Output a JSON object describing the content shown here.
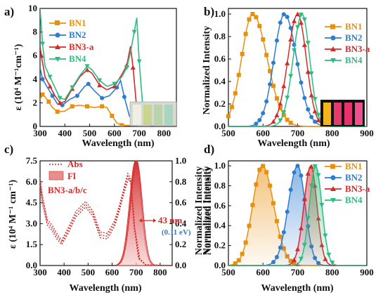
{
  "colors": {
    "BN1": "#e8900e",
    "BN2": "#2c7cd0",
    "BN3": "#d42a2a",
    "BN4": "#2bbd7e",
    "note_blue": "#2c7cd0"
  },
  "chart_data": [
    {
      "panel": "a)",
      "type": "line",
      "xlabel": "Wavelength (nm)",
      "ylabel": "ε (10⁴ M⁻¹cm⁻¹)",
      "xlim": [
        300,
        850
      ],
      "ylim": [
        0,
        10
      ],
      "xticks": [
        "300",
        "400",
        "500",
        "600",
        "700",
        "800"
      ],
      "yticks": [
        "0",
        "2",
        "4",
        "6",
        "8",
        "10"
      ],
      "legend": [
        "BN1",
        "BN2",
        "BN3-a",
        "BN4"
      ],
      "legend_position": "top-center",
      "series": [
        {
          "name": "BN1",
          "color": "#e8900e",
          "points": [
            [
              300,
              2.3
            ],
            [
              310,
              2.7
            ],
            [
              320,
              2.5
            ],
            [
              335,
              2.1
            ],
            [
              350,
              1.6
            ],
            [
              370,
              1.25
            ],
            [
              400,
              1.3
            ],
            [
              430,
              1.7
            ],
            [
              460,
              1.8
            ],
            [
              490,
              1.7
            ],
            [
              520,
              1.6
            ],
            [
              550,
              1.7
            ],
            [
              570,
              1.6
            ],
            [
              590,
              0.9
            ],
            [
              610,
              0.3
            ],
            [
              630,
              0.1
            ],
            [
              700,
              0.05
            ],
            [
              850,
              0.0
            ]
          ]
        },
        {
          "name": "BN2",
          "color": "#2c7cd0",
          "points": [
            [
              300,
              5.0
            ],
            [
              310,
              4.0
            ],
            [
              330,
              3.3
            ],
            [
              350,
              2.6
            ],
            [
              370,
              1.9
            ],
            [
              390,
              1.8
            ],
            [
              420,
              2.3
            ],
            [
              450,
              2.6
            ],
            [
              480,
              3.4
            ],
            [
              495,
              3.6
            ],
            [
              520,
              3.0
            ],
            [
              550,
              2.4
            ],
            [
              580,
              2.6
            ],
            [
              610,
              3.3
            ],
            [
              625,
              3.9
            ],
            [
              640,
              2.5
            ],
            [
              660,
              0.9
            ],
            [
              690,
              0.2
            ],
            [
              850,
              0.0
            ]
          ]
        },
        {
          "name": "BN3-a",
          "color": "#d42a2a",
          "points": [
            [
              300,
              6.8
            ],
            [
              305,
              6.0
            ],
            [
              320,
              4.2
            ],
            [
              340,
              3.4
            ],
            [
              360,
              2.6
            ],
            [
              380,
              2.0
            ],
            [
              400,
              2.1
            ],
            [
              430,
              3.2
            ],
            [
              460,
              4.2
            ],
            [
              490,
              4.8
            ],
            [
              510,
              4.5
            ],
            [
              540,
              3.5
            ],
            [
              570,
              3.1
            ],
            [
              600,
              3.4
            ],
            [
              630,
              4.4
            ],
            [
              650,
              5.2
            ],
            [
              665,
              6.8
            ],
            [
              675,
              5.0
            ],
            [
              690,
              1.5
            ],
            [
              710,
              0.3
            ],
            [
              750,
              0.05
            ],
            [
              850,
              0.0
            ]
          ]
        },
        {
          "name": "BN4",
          "color": "#2bbd7e",
          "points": [
            [
              300,
              10.0
            ],
            [
              310,
              7.0
            ],
            [
              320,
              5.1
            ],
            [
              340,
              4.2
            ],
            [
              360,
              3.3
            ],
            [
              380,
              2.4
            ],
            [
              400,
              2.3
            ],
            [
              430,
              3.3
            ],
            [
              460,
              4.3
            ],
            [
              490,
              5.1
            ],
            [
              510,
              4.8
            ],
            [
              540,
              3.9
            ],
            [
              570,
              3.4
            ],
            [
              600,
              3.6
            ],
            [
              630,
              4.2
            ],
            [
              650,
              5.0
            ],
            [
              665,
              6.3
            ],
            [
              680,
              8.0
            ],
            [
              690,
              9.2
            ],
            [
              700,
              5.5
            ],
            [
              715,
              1.5
            ],
            [
              730,
              0.3
            ],
            [
              760,
              0.05
            ],
            [
              850,
              0.0
            ]
          ]
        }
      ]
    },
    {
      "panel": "b)",
      "type": "line",
      "xlabel": "Wavelength (nm)",
      "ylabel": "Normalized Intensity",
      "xlim": [
        500,
        900
      ],
      "ylim": [
        0,
        1.05
      ],
      "xticks": [
        "500",
        "600",
        "700",
        "800",
        "900"
      ],
      "yticks": [
        "0.0",
        "0.2",
        "0.4",
        "0.6",
        "0.8",
        "1.0"
      ],
      "legend": [
        "BN1",
        "BN2",
        "BN3-a",
        "BN4"
      ],
      "legend_position": "top-right",
      "series": [
        {
          "name": "BN1",
          "color": "#e8900e",
          "peak": 570,
          "width_l": 32,
          "width_r": 42
        },
        {
          "name": "BN2",
          "color": "#2c7cd0",
          "peak": 662,
          "width_l": 30,
          "width_r": 35
        },
        {
          "name": "BN3-a",
          "color": "#d42a2a",
          "peak": 700,
          "width_l": 28,
          "width_r": 25
        },
        {
          "name": "BN4",
          "color": "#2bbd7e",
          "peak": 713,
          "width_l": 26,
          "width_r": 22
        }
      ]
    },
    {
      "panel": "c)",
      "type": "line",
      "xlabel": "Wavelength (nm)",
      "ylabel": "ε (10⁴ M⁻¹ cm⁻¹)",
      "y2label": "Normalized Intensity",
      "xlim": [
        300,
        850
      ],
      "ylim": [
        0,
        7.5
      ],
      "y2lim": [
        0,
        1.0
      ],
      "xticks": [
        "300",
        "400",
        "500",
        "600",
        "700",
        "800"
      ],
      "yticks": [
        "0.0",
        "1.5",
        "3.0",
        "4.5",
        "6.0",
        "7.5"
      ],
      "y2ticks": [
        "0.0",
        "0.2",
        "0.4",
        "0.6",
        "0.8",
        "1.0"
      ],
      "legend": [
        "Abs",
        "Fl",
        "BN3-a/b/c"
      ],
      "annotation": "43 nm",
      "annotation2": "(0.11 eV)",
      "abs_series": [
        [
          [
            300,
            6.3
          ],
          [
            310,
            5.0
          ],
          [
            330,
            3.3
          ],
          [
            350,
            2.9
          ],
          [
            370,
            2.3
          ],
          [
            390,
            1.8
          ],
          [
            420,
            2.8
          ],
          [
            450,
            3.9
          ],
          [
            490,
            4.6
          ],
          [
            520,
            3.9
          ],
          [
            550,
            2.4
          ],
          [
            580,
            2.3
          ],
          [
            610,
            3.2
          ],
          [
            630,
            4.3
          ],
          [
            650,
            5.6
          ],
          [
            665,
            6.6
          ],
          [
            675,
            6.3
          ],
          [
            690,
            3.0
          ],
          [
            710,
            0.5
          ],
          [
            740,
            0.05
          ],
          [
            850,
            0.0
          ]
        ],
        [
          [
            300,
            6.0
          ],
          [
            310,
            4.7
          ],
          [
            330,
            3.1
          ],
          [
            350,
            2.7
          ],
          [
            370,
            2.1
          ],
          [
            390,
            1.65
          ],
          [
            420,
            2.6
          ],
          [
            450,
            3.7
          ],
          [
            490,
            4.4
          ],
          [
            520,
            3.7
          ],
          [
            550,
            2.2
          ],
          [
            580,
            2.1
          ],
          [
            610,
            3.0
          ],
          [
            630,
            4.1
          ],
          [
            650,
            5.4
          ],
          [
            665,
            6.4
          ],
          [
            678,
            6.1
          ],
          [
            692,
            2.8
          ],
          [
            712,
            0.5
          ],
          [
            740,
            0.05
          ],
          [
            850,
            0.0
          ]
        ],
        [
          [
            300,
            5.7
          ],
          [
            310,
            4.4
          ],
          [
            330,
            2.9
          ],
          [
            350,
            2.5
          ],
          [
            370,
            1.9
          ],
          [
            390,
            1.5
          ],
          [
            420,
            2.4
          ],
          [
            450,
            3.5
          ],
          [
            490,
            4.2
          ],
          [
            520,
            3.5
          ],
          [
            550,
            2.0
          ],
          [
            580,
            1.9
          ],
          [
            610,
            2.8
          ],
          [
            630,
            3.9
          ],
          [
            650,
            5.2
          ],
          [
            668,
            6.2
          ],
          [
            680,
            5.9
          ],
          [
            695,
            2.6
          ],
          [
            715,
            0.5
          ],
          [
            740,
            0.05
          ],
          [
            850,
            0.0
          ]
        ]
      ],
      "fl_series": [
        {
          "peak": 697,
          "width_l": 25,
          "width_r": 23
        },
        {
          "peak": 700,
          "width_l": 25,
          "width_r": 23
        },
        {
          "peak": 703,
          "width_l": 25,
          "width_r": 23
        }
      ]
    },
    {
      "panel": "d)",
      "type": "area",
      "xlabel": "Wavelength (nm)",
      "ylabel": "Normalized Intensity",
      "xlim": [
        500,
        900
      ],
      "ylim": [
        0,
        1.05
      ],
      "xticks": [
        "500",
        "600",
        "700",
        "800",
        "900"
      ],
      "yticks": [
        "0.0",
        "0.2",
        "0.4",
        "0.6",
        "0.8",
        "1.0"
      ],
      "legend": [
        "BN1",
        "BN2",
        "BN3-a",
        "BN4"
      ],
      "legend_position": "top-right",
      "series": [
        {
          "name": "BN1",
          "color": "#e8900e",
          "peak": 598,
          "width_l": 28,
          "width_r": 33
        },
        {
          "name": "BN2",
          "color": "#2c7cd0",
          "peak": 700,
          "width_l": 27,
          "width_r": 22
        },
        {
          "name": "BN3-a",
          "color": "#d42a2a",
          "peak": 738,
          "width_l": 20,
          "width_r": 18
        },
        {
          "name": "BN4",
          "color": "#2bbd7e",
          "peak": 752,
          "width_l": 18,
          "width_r": 18
        }
      ]
    }
  ]
}
